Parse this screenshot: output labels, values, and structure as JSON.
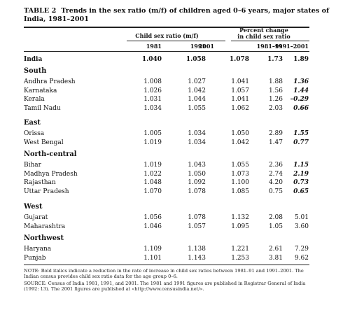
{
  "table": {
    "label": "TABLE 2",
    "title": "Trends in the sex ratio (m/f) of children aged 0–6 years, major states of India, 1981–2001",
    "group_header_ratio": "Child sex ratio (m/f)",
    "group_header_change_line1": "Percent change",
    "group_header_change_line2": "in child sex ratio",
    "columns": [
      "1981",
      "1991",
      "2001",
      "1981–91",
      "1991–2001"
    ],
    "india": {
      "name": "India",
      "values": [
        "1.040",
        "1.058",
        "1.078",
        "1.73",
        "1.89"
      ]
    },
    "groups": [
      {
        "name": "South",
        "rows": [
          {
            "name": "Andhra Pradesh",
            "values": [
              "1.008",
              "1.027",
              "1.041",
              "1.88",
              "1.36"
            ],
            "flag": true
          },
          {
            "name": "Karnataka",
            "values": [
              "1.026",
              "1.042",
              "1.057",
              "1.56",
              "1.44"
            ],
            "flag": true
          },
          {
            "name": "Kerala",
            "values": [
              "1.031",
              "1.044",
              "1.041",
              "1.26",
              "–0.29"
            ],
            "flag": true
          },
          {
            "name": "Tamil Nadu",
            "values": [
              "1.034",
              "1.055",
              "1.062",
              "2.03",
              "0.66"
            ],
            "flag": true
          }
        ]
      },
      {
        "name": "East",
        "rows": [
          {
            "name": "Orissa",
            "values": [
              "1.005",
              "1.034",
              "1.050",
              "2.89",
              "1.55"
            ],
            "flag": true
          },
          {
            "name": "West Bengal",
            "values": [
              "1.019",
              "1.034",
              "1.042",
              "1.47",
              "0.77"
            ],
            "flag": true
          }
        ]
      },
      {
        "name": "North-central",
        "rows": [
          {
            "name": "Bihar",
            "values": [
              "1.019",
              "1.043",
              "1.055",
              "2.36",
              "1.15"
            ],
            "flag": true
          },
          {
            "name": "Madhya Pradesh",
            "values": [
              "1.022",
              "1.050",
              "1.073",
              "2.74",
              "2.19"
            ],
            "flag": true
          },
          {
            "name": "Rajasthan",
            "values": [
              "1.048",
              "1.092",
              "1.100",
              "4.20",
              "0.73"
            ],
            "flag": true
          },
          {
            "name": "Uttar Pradesh",
            "values": [
              "1.070",
              "1.078",
              "1.085",
              "0.75",
              "0.65"
            ],
            "flag": true
          }
        ]
      },
      {
        "name": "West",
        "rows": [
          {
            "name": "Gujarat",
            "values": [
              "1.056",
              "1.078",
              "1.132",
              "2.08",
              "5.01"
            ],
            "flag": false
          },
          {
            "name": "Maharashtra",
            "values": [
              "1.046",
              "1.057",
              "1.095",
              "1.05",
              "3.60"
            ],
            "flag": false
          }
        ]
      },
      {
        "name": "Northwest",
        "rows": [
          {
            "name": "Haryana",
            "values": [
              "1.109",
              "1.138",
              "1.221",
              "2.61",
              "7.29"
            ],
            "flag": false
          },
          {
            "name": "Punjab",
            "values": [
              "1.101",
              "1.143",
              "1.253",
              "3.81",
              "9.62"
            ],
            "flag": false
          }
        ]
      }
    ],
    "note": "NOTE: Bold italics indicate a reduction in the rate of increase in child sex ratios between 1981–91 and 1991–2001. The Indian census provides child sex ratio data for the age group 0–6.",
    "source": "SOURCE: Census of India 1981, 1991, and 2001. The 1981 and 1991 figures are published in Registrar General of India (1992: 13). The 2001 figures are published at «http://www.censusindia.net/»."
  }
}
